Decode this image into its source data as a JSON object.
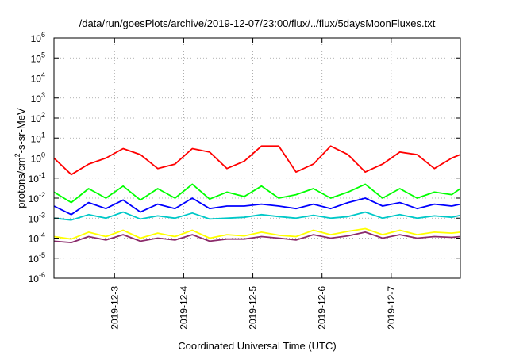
{
  "chart_data": {
    "type": "line",
    "title": "/data/run/goesPlots/archive/2019-12-07/23:00/flux/../flux/5daysMoonFluxes.txt",
    "xlabel": "Coordinated Universal Time (UTC)",
    "ylabel": {
      "base": "protons/cm",
      "sup": "2",
      "rest": "-s-sr-MeV"
    },
    "x_range": [
      "2019-12-02T03:00",
      "2019-12-08T00:00"
    ],
    "x_ticks": [
      "2019-12-3",
      "2019-12-4",
      "2019-12-5",
      "2019-12-6",
      "2019-12-7"
    ],
    "ylim": [
      1e-06,
      1000000.0
    ],
    "y_scale": "log",
    "y_ticks": [
      {
        "base": "10",
        "exp": "-6",
        "value": 1e-06
      },
      {
        "base": "10",
        "exp": "-5",
        "value": 1e-05
      },
      {
        "base": "10",
        "exp": "-4",
        "value": 0.0001
      },
      {
        "base": "10",
        "exp": "-3",
        "value": 0.001
      },
      {
        "base": "10",
        "exp": "-2",
        "value": 0.01
      },
      {
        "base": "10",
        "exp": "-1",
        "value": 0.1
      },
      {
        "base": "10",
        "exp": "0",
        "value": 1
      },
      {
        "base": "10",
        "exp": "1",
        "value": 10
      },
      {
        "base": "10",
        "exp": "2",
        "value": 100
      },
      {
        "base": "10",
        "exp": "3",
        "value": 1000
      },
      {
        "base": "10",
        "exp": "4",
        "value": 10000
      },
      {
        "base": "10",
        "exp": "5",
        "value": 100000
      },
      {
        "base": "10",
        "exp": "6",
        "value": 1000000
      }
    ],
    "grid": true,
    "series": [
      {
        "color": "#00ff00",
        "x": [
          "2019-12-02T03:00",
          "2019-12-02T09:00",
          "2019-12-02T15:00",
          "2019-12-02T21:00",
          "2019-12-03T03:00",
          "2019-12-03T09:00",
          "2019-12-03T15:00",
          "2019-12-03T21:00",
          "2019-12-04T03:00",
          "2019-12-04T09:00",
          "2019-12-04T15:00",
          "2019-12-04T21:00",
          "2019-12-05T03:00",
          "2019-12-05T09:00",
          "2019-12-05T15:00",
          "2019-12-05T21:00",
          "2019-12-06T03:00",
          "2019-12-06T09:00",
          "2019-12-06T15:00",
          "2019-12-06T21:00",
          "2019-12-07T03:00",
          "2019-12-07T09:00",
          "2019-12-07T15:00",
          "2019-12-07T21:00",
          "2019-12-08T00:00"
        ],
        "y": [
          0.02,
          0.006,
          0.03,
          0.01,
          0.04,
          0.008,
          0.03,
          0.01,
          0.05,
          0.009,
          0.02,
          0.012,
          0.04,
          0.01,
          0.015,
          0.03,
          0.01,
          0.02,
          0.05,
          0.01,
          0.03,
          0.01,
          0.02,
          0.015,
          0.03
        ]
      },
      {
        "color": "#0000ff",
        "x": [
          "2019-12-02T03:00",
          "2019-12-02T09:00",
          "2019-12-02T15:00",
          "2019-12-02T21:00",
          "2019-12-03T03:00",
          "2019-12-03T09:00",
          "2019-12-03T15:00",
          "2019-12-03T21:00",
          "2019-12-04T03:00",
          "2019-12-04T09:00",
          "2019-12-04T15:00",
          "2019-12-04T21:00",
          "2019-12-05T03:00",
          "2019-12-05T09:00",
          "2019-12-05T15:00",
          "2019-12-05T21:00",
          "2019-12-06T03:00",
          "2019-12-06T09:00",
          "2019-12-06T15:00",
          "2019-12-06T21:00",
          "2019-12-07T03:00",
          "2019-12-07T09:00",
          "2019-12-07T15:00",
          "2019-12-07T21:00",
          "2019-12-08T00:00"
        ],
        "y": [
          0.004,
          0.0015,
          0.006,
          0.003,
          0.008,
          0.002,
          0.005,
          0.003,
          0.01,
          0.003,
          0.004,
          0.004,
          0.005,
          0.004,
          0.003,
          0.005,
          0.003,
          0.006,
          0.01,
          0.004,
          0.006,
          0.003,
          0.005,
          0.004,
          0.005
        ]
      },
      {
        "color": "#00c8c8",
        "x": [
          "2019-12-02T03:00",
          "2019-12-02T09:00",
          "2019-12-02T15:00",
          "2019-12-02T21:00",
          "2019-12-03T03:00",
          "2019-12-03T09:00",
          "2019-12-03T15:00",
          "2019-12-03T21:00",
          "2019-12-04T03:00",
          "2019-12-04T09:00",
          "2019-12-04T15:00",
          "2019-12-04T21:00",
          "2019-12-05T03:00",
          "2019-12-05T09:00",
          "2019-12-05T15:00",
          "2019-12-05T21:00",
          "2019-12-06T03:00",
          "2019-12-06T09:00",
          "2019-12-06T15:00",
          "2019-12-06T21:00",
          "2019-12-07T03:00",
          "2019-12-07T09:00",
          "2019-12-07T15:00",
          "2019-12-07T21:00",
          "2019-12-08T00:00"
        ],
        "y": [
          0.001,
          0.0008,
          0.0015,
          0.001,
          0.002,
          0.0009,
          0.0013,
          0.001,
          0.0018,
          0.0009,
          0.001,
          0.0011,
          0.0015,
          0.0012,
          0.001,
          0.0014,
          0.001,
          0.0012,
          0.002,
          0.001,
          0.0015,
          0.001,
          0.0013,
          0.0011,
          0.0014
        ]
      },
      {
        "color": "#ffff00",
        "x": [
          "2019-12-02T03:00",
          "2019-12-02T09:00",
          "2019-12-02T15:00",
          "2019-12-02T21:00",
          "2019-12-03T03:00",
          "2019-12-03T09:00",
          "2019-12-03T15:00",
          "2019-12-03T21:00",
          "2019-12-04T03:00",
          "2019-12-04T09:00",
          "2019-12-04T15:00",
          "2019-12-04T21:00",
          "2019-12-05T03:00",
          "2019-12-05T09:00",
          "2019-12-05T15:00",
          "2019-12-05T21:00",
          "2019-12-06T03:00",
          "2019-12-06T09:00",
          "2019-12-06T15:00",
          "2019-12-06T21:00",
          "2019-12-07T03:00",
          "2019-12-07T09:00",
          "2019-12-07T15:00",
          "2019-12-07T21:00",
          "2019-12-08T00:00"
        ],
        "y": [
          0.00012,
          9e-05,
          0.0002,
          0.00012,
          0.00025,
          0.0001,
          0.00018,
          0.00012,
          0.00025,
          0.0001,
          0.00015,
          0.00013,
          0.0002,
          0.00014,
          0.00012,
          0.00025,
          0.00015,
          0.00022,
          0.0003,
          0.00015,
          0.00025,
          0.00015,
          0.0002,
          0.00018,
          0.0002
        ]
      },
      {
        "color": "#8b2b6b",
        "x": [
          "2019-12-02T03:00",
          "2019-12-02T09:00",
          "2019-12-02T15:00",
          "2019-12-02T21:00",
          "2019-12-03T03:00",
          "2019-12-03T09:00",
          "2019-12-03T15:00",
          "2019-12-03T21:00",
          "2019-12-04T03:00",
          "2019-12-04T09:00",
          "2019-12-04T15:00",
          "2019-12-04T21:00",
          "2019-12-05T03:00",
          "2019-12-05T09:00",
          "2019-12-05T15:00",
          "2019-12-05T21:00",
          "2019-12-06T03:00",
          "2019-12-06T09:00",
          "2019-12-06T15:00",
          "2019-12-06T21:00",
          "2019-12-07T03:00",
          "2019-12-07T09:00",
          "2019-12-07T15:00",
          "2019-12-07T21:00",
          "2019-12-08T00:00"
        ],
        "y": [
          7e-05,
          6e-05,
          0.00012,
          8e-05,
          0.00015,
          7e-05,
          0.0001,
          8e-05,
          0.00015,
          7e-05,
          9e-05,
          9e-05,
          0.00012,
          0.0001,
          8e-05,
          0.00015,
          0.0001,
          0.00013,
          0.0002,
          0.0001,
          0.00015,
          0.0001,
          0.00012,
          0.00011,
          0.00012
        ]
      },
      {
        "color": "#ff0000",
        "x": [
          "2019-12-02T03:00",
          "2019-12-02T09:00",
          "2019-12-02T15:00",
          "2019-12-02T21:00",
          "2019-12-03T03:00",
          "2019-12-03T09:00",
          "2019-12-03T15:00",
          "2019-12-03T21:00",
          "2019-12-04T03:00",
          "2019-12-04T09:00",
          "2019-12-04T15:00",
          "2019-12-04T21:00",
          "2019-12-05T03:00",
          "2019-12-05T09:00",
          "2019-12-05T15:00",
          "2019-12-05T21:00",
          "2019-12-06T03:00",
          "2019-12-06T09:00",
          "2019-12-06T15:00",
          "2019-12-06T21:00",
          "2019-12-07T03:00",
          "2019-12-07T09:00",
          "2019-12-07T15:00",
          "2019-12-07T21:00",
          "2019-12-08T00:00"
        ],
        "y": [
          1.0,
          0.15,
          0.5,
          1.0,
          3.0,
          1.5,
          0.3,
          0.5,
          3.0,
          2.0,
          0.3,
          0.7,
          4.0,
          4.0,
          0.2,
          0.5,
          4.0,
          1.5,
          0.2,
          0.5,
          2.0,
          1.5,
          0.3,
          1.0,
          1.5
        ]
      }
    ]
  }
}
